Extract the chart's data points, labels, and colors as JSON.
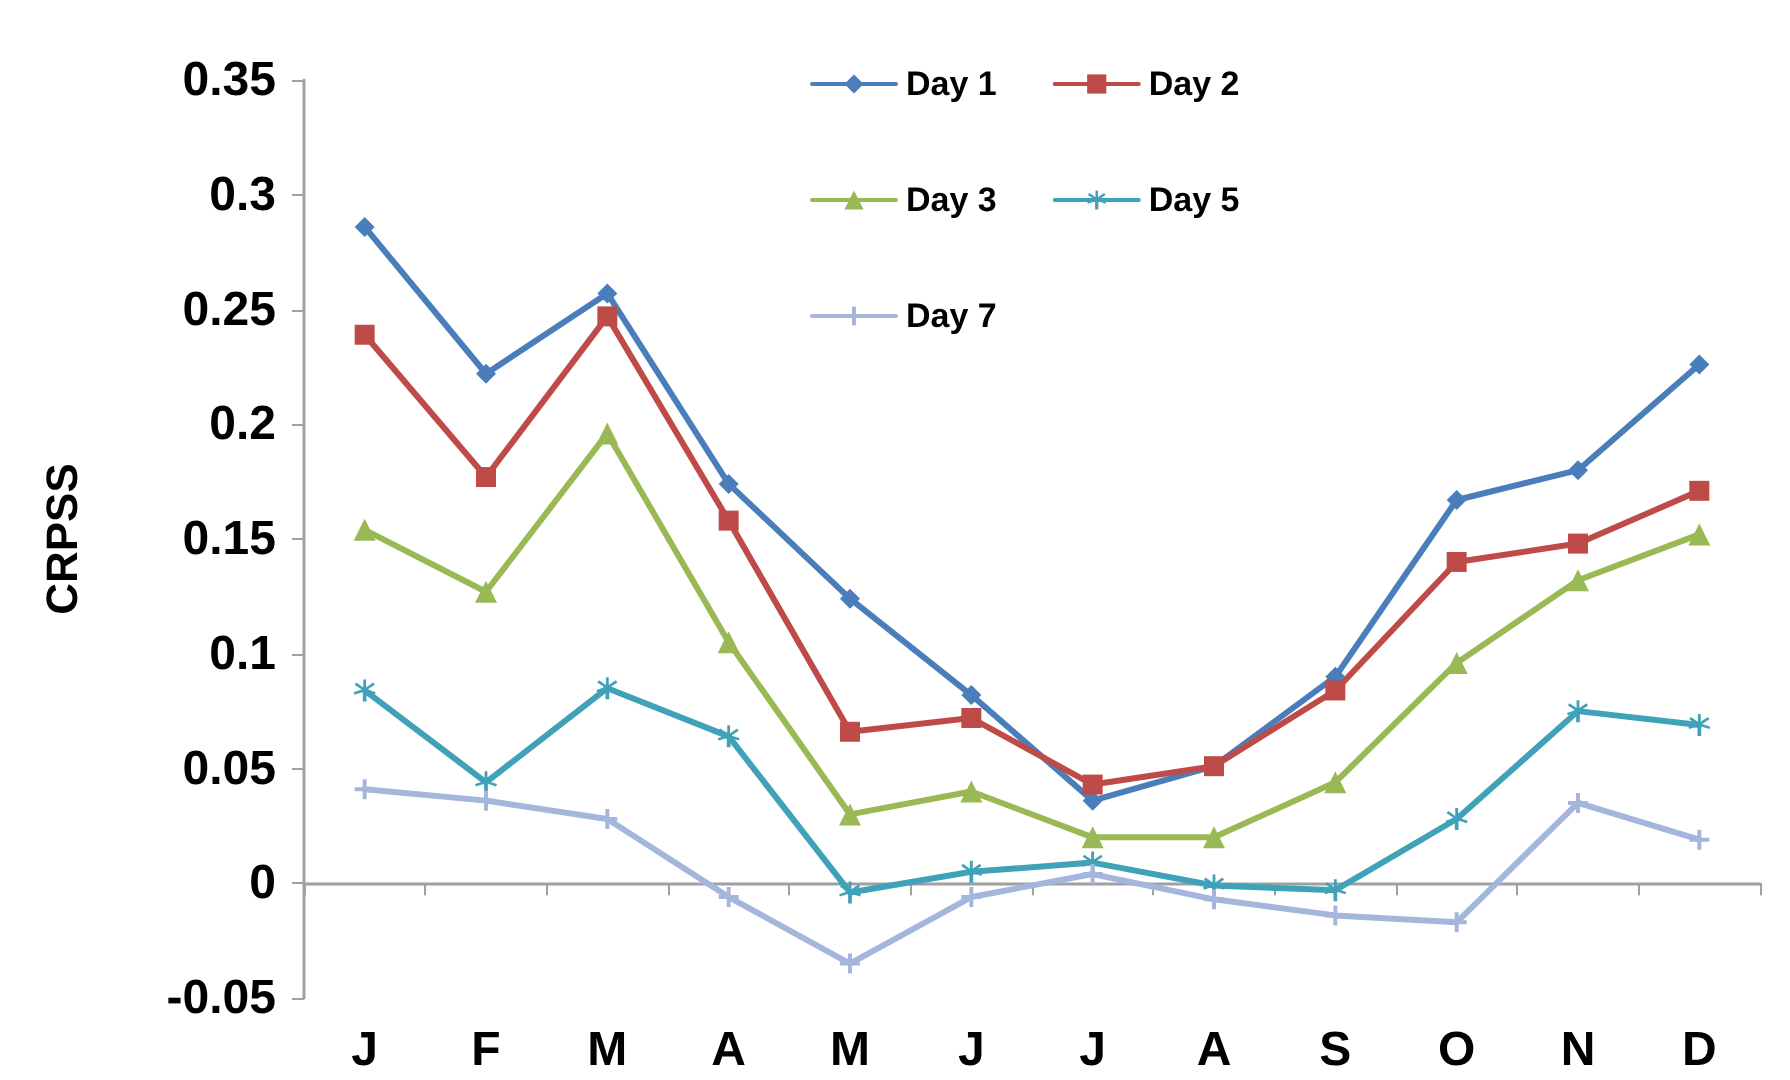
{
  "chart_data": {
    "type": "line",
    "ylabel": "CRPSS",
    "categories": [
      "J",
      "F",
      "M",
      "A",
      "M",
      "J",
      "J",
      "A",
      "S",
      "O",
      "N",
      "D"
    ],
    "series": [
      {
        "name": "Day 1",
        "color": "#4a7ebb",
        "marker": "diamond",
        "values": [
          0.286,
          0.222,
          0.257,
          0.174,
          0.124,
          0.082,
          0.036,
          0.051,
          0.09,
          0.167,
          0.18,
          0.226
        ]
      },
      {
        "name": "Day 2",
        "color": "#be4b48",
        "marker": "square",
        "values": [
          0.239,
          0.177,
          0.247,
          0.158,
          0.066,
          0.072,
          0.043,
          0.051,
          0.084,
          0.14,
          0.148,
          0.171
        ]
      },
      {
        "name": "Day 3",
        "color": "#98b954",
        "marker": "triangle",
        "values": [
          0.154,
          0.127,
          0.196,
          0.105,
          0.03,
          0.04,
          0.02,
          0.02,
          0.044,
          0.096,
          0.132,
          0.152
        ]
      },
      {
        "name": "Day 5",
        "color": "#3fa2b8",
        "marker": "star",
        "values": [
          0.084,
          0.044,
          0.085,
          0.064,
          -0.004,
          0.005,
          0.009,
          -0.001,
          -0.003,
          0.028,
          0.075,
          0.069
        ]
      },
      {
        "name": "Day 7",
        "color": "#a5b6dc",
        "marker": "cross",
        "values": [
          0.041,
          0.036,
          0.028,
          -0.006,
          -0.035,
          -0.006,
          0.004,
          -0.007,
          -0.014,
          -0.017,
          0.035,
          0.019
        ]
      }
    ],
    "ylim": [
      -0.05,
      0.35
    ],
    "yticks": [
      -0.05,
      0,
      0.05,
      0.1,
      0.15,
      0.2,
      0.25,
      0.3,
      0.35
    ],
    "legend": "top",
    "line_style": "solid"
  }
}
